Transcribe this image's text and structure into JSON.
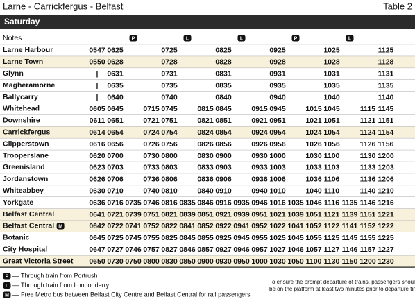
{
  "header": {
    "title": "Larne - Carrickfergus - Belfast",
    "table_label": "Table 2",
    "day": "Saturday"
  },
  "table": {
    "notes_label": "Notes",
    "notes": [
      null,
      null,
      "P",
      null,
      null,
      "L",
      null,
      null,
      "L",
      null,
      null,
      "P",
      null,
      null,
      "L",
      null,
      null
    ],
    "rows": [
      {
        "station": "Larne Harbour",
        "highlight": false,
        "times": [
          "0547",
          "0625",
          null,
          null,
          "0725",
          null,
          null,
          "0825",
          null,
          null,
          "0925",
          null,
          null,
          "1025",
          null,
          null,
          "1125"
        ]
      },
      {
        "station": "Larne Town",
        "highlight": true,
        "times": [
          "0550",
          "0628",
          null,
          null,
          "0728",
          null,
          null,
          "0828",
          null,
          null,
          "0928",
          null,
          null,
          "1028",
          null,
          null,
          "1128"
        ]
      },
      {
        "station": "Glynn",
        "highlight": false,
        "times": [
          "|",
          "0631",
          null,
          null,
          "0731",
          null,
          null,
          "0831",
          null,
          null,
          "0931",
          null,
          null,
          "1031",
          null,
          null,
          "1131"
        ]
      },
      {
        "station": "Magheramorne",
        "highlight": false,
        "times": [
          "|",
          "0635",
          null,
          null,
          "0735",
          null,
          null,
          "0835",
          null,
          null,
          "0935",
          null,
          null,
          "1035",
          null,
          null,
          "1135"
        ]
      },
      {
        "station": "Ballycarry",
        "highlight": false,
        "times": [
          "|",
          "0640",
          null,
          null,
          "0740",
          null,
          null,
          "0840",
          null,
          null,
          "0940",
          null,
          null,
          "1040",
          null,
          null,
          "1140"
        ]
      },
      {
        "station": "Whitehead",
        "highlight": false,
        "times": [
          "0605",
          "0645",
          null,
          "0715",
          "0745",
          null,
          "0815",
          "0845",
          null,
          "0915",
          "0945",
          null,
          "1015",
          "1045",
          null,
          "1115",
          "1145"
        ]
      },
      {
        "station": "Downshire",
        "highlight": false,
        "times": [
          "0611",
          "0651",
          null,
          "0721",
          "0751",
          null,
          "0821",
          "0851",
          null,
          "0921",
          "0951",
          null,
          "1021",
          "1051",
          null,
          "1121",
          "1151"
        ]
      },
      {
        "station": "Carrickfergus",
        "highlight": true,
        "times": [
          "0614",
          "0654",
          null,
          "0724",
          "0754",
          null,
          "0824",
          "0854",
          null,
          "0924",
          "0954",
          null,
          "1024",
          "1054",
          null,
          "1124",
          "1154"
        ]
      },
      {
        "station": "Clipperstown",
        "highlight": false,
        "times": [
          "0616",
          "0656",
          null,
          "0726",
          "0756",
          null,
          "0826",
          "0856",
          null,
          "0926",
          "0956",
          null,
          "1026",
          "1056",
          null,
          "1126",
          "1156"
        ]
      },
      {
        "station": "Trooperslane",
        "highlight": false,
        "times": [
          "0620",
          "0700",
          null,
          "0730",
          "0800",
          null,
          "0830",
          "0900",
          null,
          "0930",
          "1000",
          null,
          "1030",
          "1100",
          null,
          "1130",
          "1200"
        ]
      },
      {
        "station": "Greenisland",
        "highlight": false,
        "times": [
          "0623",
          "0703",
          null,
          "0733",
          "0803",
          null,
          "0833",
          "0903",
          null,
          "0933",
          "1003",
          null,
          "1033",
          "1103",
          null,
          "1133",
          "1203"
        ]
      },
      {
        "station": "Jordanstown",
        "highlight": false,
        "times": [
          "0626",
          "0706",
          null,
          "0736",
          "0806",
          null,
          "0836",
          "0906",
          null,
          "0936",
          "1006",
          null,
          "1036",
          "1106",
          null,
          "1136",
          "1206"
        ]
      },
      {
        "station": "Whiteabbey",
        "highlight": false,
        "times": [
          "0630",
          "0710",
          null,
          "0740",
          "0810",
          null,
          "0840",
          "0910",
          null,
          "0940",
          "1010",
          null,
          "1040",
          "1110",
          null,
          "1140",
          "1210"
        ]
      },
      {
        "station": "Yorkgate",
        "highlight": false,
        "times": [
          "0636",
          "0716",
          "0735",
          "0746",
          "0816",
          "0835",
          "0846",
          "0916",
          "0935",
          "0946",
          "1016",
          "1035",
          "1046",
          "1116",
          "1135",
          "1146",
          "1216"
        ]
      },
      {
        "station": "Belfast Central",
        "highlight": true,
        "times": [
          "0641",
          "0721",
          "0739",
          "0751",
          "0821",
          "0839",
          "0851",
          "0921",
          "0939",
          "0951",
          "1021",
          "1039",
          "1051",
          "1121",
          "1139",
          "1151",
          "1221"
        ]
      },
      {
        "station": "Belfast Central",
        "badge": "M",
        "highlight": true,
        "times": [
          "0642",
          "0722",
          "0741",
          "0752",
          "0822",
          "0841",
          "0852",
          "0922",
          "0941",
          "0952",
          "1022",
          "1041",
          "1052",
          "1122",
          "1141",
          "1152",
          "1222"
        ]
      },
      {
        "station": "Botanic",
        "highlight": false,
        "times": [
          "0645",
          "0725",
          "0745",
          "0755",
          "0825",
          "0845",
          "0855",
          "0925",
          "0945",
          "0955",
          "1025",
          "1045",
          "1055",
          "1125",
          "1145",
          "1155",
          "1225"
        ]
      },
      {
        "station": "City Hospital",
        "highlight": false,
        "times": [
          "0647",
          "0727",
          "0746",
          "0757",
          "0827",
          "0846",
          "0857",
          "0927",
          "0946",
          "0957",
          "1027",
          "1046",
          "1057",
          "1127",
          "1146",
          "1157",
          "1227"
        ]
      },
      {
        "station": "Great Victoria Street",
        "highlight": true,
        "times": [
          "0650",
          "0730",
          "0750",
          "0800",
          "0830",
          "0850",
          "0900",
          "0930",
          "0950",
          "1000",
          "1030",
          "1050",
          "1100",
          "1130",
          "1150",
          "1200",
          "1230"
        ]
      }
    ]
  },
  "footnotes": [
    {
      "symbol": "P",
      "text": "Through train from Portrush"
    },
    {
      "symbol": "L",
      "text": "Through train from Londonderry"
    },
    {
      "symbol": "M",
      "text": "Free Metro bus between Belfast City Centre and Belfast Central for rail passengers"
    }
  ],
  "platform_note": [
    "To ensure the prompt departure of trains, passengers should",
    "be on the platform at least two minutes prior to departure time."
  ]
}
